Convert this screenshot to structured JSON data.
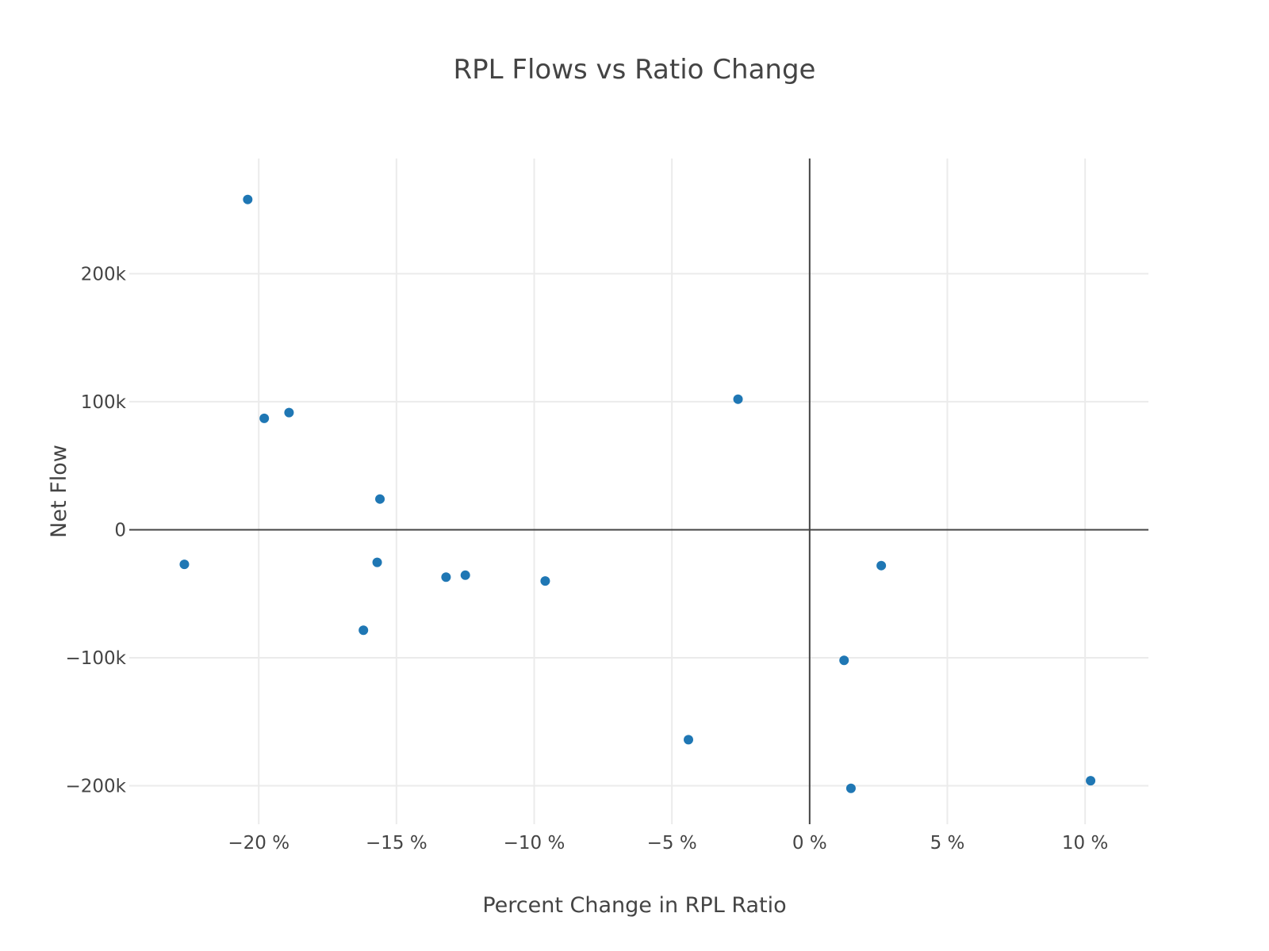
{
  "chart_data": {
    "type": "scatter",
    "title": "RPL Flows vs Ratio Change",
    "xlabel": "Percent Change in RPL Ratio",
    "ylabel": "Net Flow",
    "xlim": [
      -24.7,
      12.3
    ],
    "ylim": [
      -230000,
      290000
    ],
    "x_ticks": [
      {
        "value": -20,
        "label": "−20 %"
      },
      {
        "value": -15,
        "label": "−15 %"
      },
      {
        "value": -10,
        "label": "−10 %"
      },
      {
        "value": -5,
        "label": "−5 %"
      },
      {
        "value": 0,
        "label": "0 %"
      },
      {
        "value": 5,
        "label": "5 %"
      },
      {
        "value": 10,
        "label": "10 %"
      }
    ],
    "y_ticks": [
      {
        "value": 200000,
        "label": "200k"
      },
      {
        "value": 100000,
        "label": "100k"
      },
      {
        "value": 0,
        "label": "0"
      },
      {
        "value": -100000,
        "label": "−100k"
      },
      {
        "value": -200000,
        "label": "−200k"
      }
    ],
    "grid": true,
    "marker_color": "#1f77b4",
    "series": [
      {
        "points": [
          {
            "x": -20.4,
            "y": 258000
          },
          {
            "x": -19.8,
            "y": 87000
          },
          {
            "x": -18.9,
            "y": 91500
          },
          {
            "x": -22.7,
            "y": -27000
          },
          {
            "x": -15.6,
            "y": 24000
          },
          {
            "x": -15.7,
            "y": -25500
          },
          {
            "x": -16.2,
            "y": -78500
          },
          {
            "x": -13.2,
            "y": -37000
          },
          {
            "x": -12.5,
            "y": -35500
          },
          {
            "x": -9.6,
            "y": -40000
          },
          {
            "x": -2.6,
            "y": 102000
          },
          {
            "x": -4.4,
            "y": -164000
          },
          {
            "x": 1.25,
            "y": -102000
          },
          {
            "x": 1.5,
            "y": -202000
          },
          {
            "x": 2.6,
            "y": -28000
          },
          {
            "x": 10.2,
            "y": -196000
          }
        ]
      }
    ]
  }
}
